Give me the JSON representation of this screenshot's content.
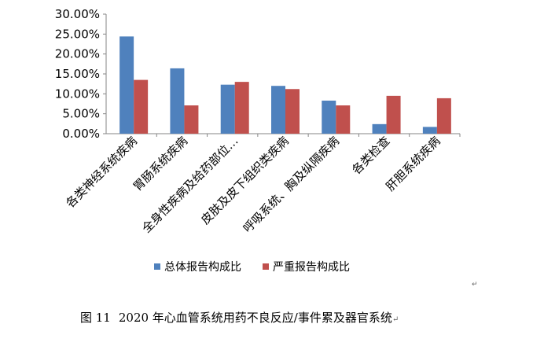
{
  "chart_data": {
    "type": "bar",
    "categories": [
      "各类神经系统疾病",
      "胃肠系统疾病",
      "全身性疾病及给药部位…",
      "皮肤及皮下组织类疾病",
      "呼吸系统、胸及纵隔疾病",
      "各类检查",
      "肝胆系统疾病"
    ],
    "series": [
      {
        "name": "总体报告构成比",
        "values": [
          24.4,
          16.4,
          12.3,
          12.0,
          8.3,
          2.4,
          1.7
        ],
        "color": "#4F81BD"
      },
      {
        "name": "严重报告构成比",
        "values": [
          13.5,
          7.1,
          13.0,
          11.2,
          7.1,
          9.5,
          8.9
        ],
        "color": "#C0504D"
      }
    ],
    "y_ticks": [
      "0.00%",
      "5.00%",
      "10.00%",
      "15.00%",
      "20.00%",
      "25.00%",
      "30.00%"
    ],
    "ylim": [
      0,
      30
    ],
    "y_unit": "%",
    "legend_position": "bottom",
    "grid": false
  },
  "caption": {
    "figure_number": "图 11",
    "title": "2020 年心血管系统用药不良反应/事件累及器官系统",
    "return_mark": "↵"
  },
  "paragraph_mark": "↵"
}
